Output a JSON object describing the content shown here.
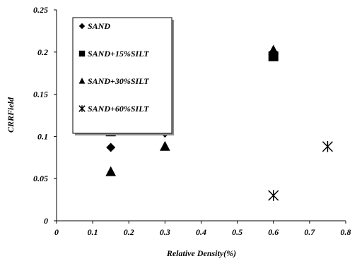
{
  "chart_data": {
    "type": "scatter",
    "xlabel": "Relative Density(%)",
    "ylabel": "CRRField",
    "xlim": [
      0,
      0.8
    ],
    "ylim": [
      0,
      0.25
    ],
    "x_ticks": [
      "0",
      "0.1",
      "0.2",
      "0.3",
      "0.4",
      "0.5",
      "0.6",
      "0.7",
      "0.8"
    ],
    "y_ticks": [
      "0",
      "0.05",
      "0.1",
      "0.15",
      "0.2",
      "0.25"
    ],
    "grid": false,
    "legend_position": "top-left",
    "series": [
      {
        "name": "SAND",
        "marker": "diamond",
        "x": [
          0.15,
          0.3,
          0.6
        ],
        "y": [
          0.087,
          0.104,
          0.2
        ]
      },
      {
        "name": "SAND+15%SILT",
        "marker": "square",
        "x": [
          0.15,
          0.3,
          0.6
        ],
        "y": [
          0.106,
          0.123,
          0.195
        ]
      },
      {
        "name": "SAND+30%SILT",
        "marker": "triangle",
        "x": [
          0.15,
          0.3,
          0.6
        ],
        "y": [
          0.058,
          0.088,
          0.202
        ]
      },
      {
        "name": "SAND+60%SILT",
        "marker": "asterisk",
        "x": [
          0.6,
          0.75
        ],
        "y": [
          0.03,
          0.088
        ]
      }
    ],
    "marker_color": "#000000"
  }
}
